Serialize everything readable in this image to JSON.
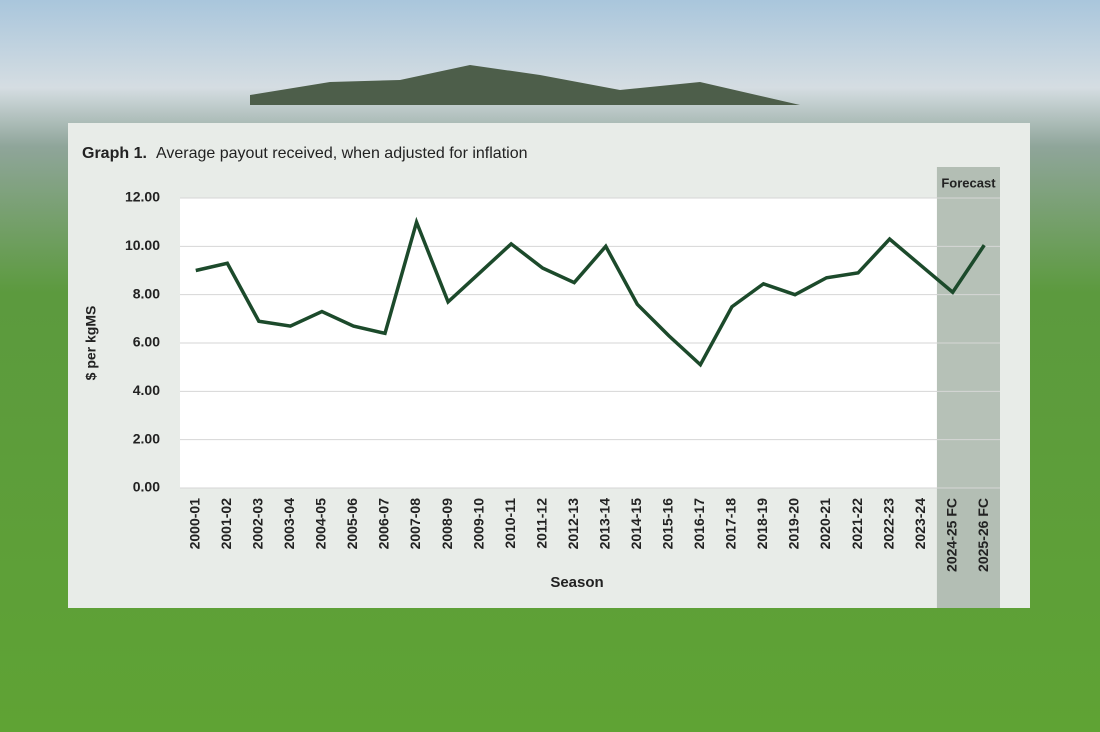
{
  "chart_data": {
    "type": "line",
    "title_prefix": "Graph 1.",
    "title": "Average payout received, when adjusted for inflation",
    "y_label": "$ per kgMS",
    "x_label": "Season",
    "forecast_label": "Forecast",
    "forecast_from": 24,
    "categories": [
      "2000-01",
      "2001-02",
      "2002-03",
      "2003-04",
      "2004-05",
      "2005-06",
      "2006-07",
      "2007-08",
      "2008-09",
      "2009-10",
      "2010-11",
      "2011-12",
      "2012-13",
      "2013-14",
      "2014-15",
      "2015-16",
      "2016-17",
      "2017-18",
      "2018-19",
      "2019-20",
      "2020-21",
      "2021-22",
      "2022-23",
      "2023-24",
      "2024-25 FC",
      "2025-26 FC"
    ],
    "series": [
      {
        "name": "Average payout",
        "color": "#1c4a2b",
        "values": [
          9.0,
          9.3,
          6.9,
          6.7,
          7.3,
          6.7,
          6.4,
          11.0,
          7.7,
          8.9,
          10.1,
          9.1,
          8.5,
          10.0,
          7.6,
          6.3,
          5.1,
          7.5,
          8.45,
          8.0,
          8.7,
          8.9,
          10.3,
          9.2,
          8.1,
          10.05
        ]
      }
    ],
    "ylim": [
      0,
      12
    ],
    "yticks": [
      {
        "value": 0,
        "label": "0.00"
      },
      {
        "value": 2,
        "label": "2.00"
      },
      {
        "value": 4,
        "label": "4.00"
      },
      {
        "value": 6,
        "label": "6.00"
      },
      {
        "value": 8,
        "label": "8.00"
      },
      {
        "value": 10,
        "label": "10.00"
      },
      {
        "value": 12,
        "label": "12.00"
      }
    ],
    "grid": true
  }
}
